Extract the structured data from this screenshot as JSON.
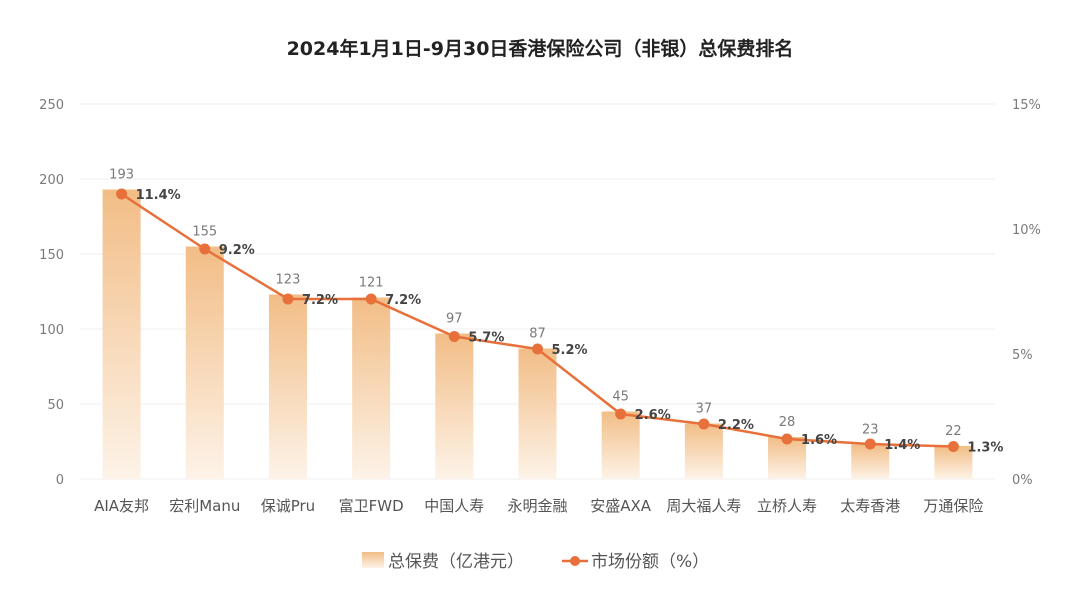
{
  "chart_data": {
    "type": "bar",
    "title": "2024年1月1日-9月30日香港保险公司（非银）总保费排名",
    "categories": [
      "AIA友邦",
      "宏利Manu",
      "保诚Pru",
      "富卫FWD",
      "中国人寿",
      "永明金融",
      "安盛AXA",
      "周大福人寿",
      "立桥人寿",
      "太寿香港",
      "万通保险"
    ],
    "series": [
      {
        "name": "总保费（亿港元）",
        "type": "bar",
        "axis": "left",
        "values": [
          193,
          155,
          123,
          121,
          97,
          87,
          45,
          37,
          28,
          23,
          22
        ]
      },
      {
        "name": "市场份额（%）",
        "type": "line",
        "axis": "right",
        "values": [
          11.4,
          9.2,
          7.2,
          7.2,
          5.7,
          5.2,
          2.6,
          2.2,
          1.6,
          1.4,
          1.3
        ],
        "labels": [
          "11.4%",
          "9.2%",
          "7.2%",
          "7.2%",
          "5.7%",
          "5.2%",
          "2.6%",
          "2.2%",
          "1.6%",
          "1.4%",
          "1.3%"
        ]
      }
    ],
    "left_axis": {
      "ylim": [
        0,
        250
      ],
      "ticks": [
        0,
        50,
        100,
        150,
        200,
        250
      ],
      "tick_labels": [
        "0",
        "50",
        "100",
        "150",
        "200",
        "250"
      ]
    },
    "right_axis": {
      "ylim": [
        0,
        15
      ],
      "ticks": [
        0,
        5,
        10,
        15
      ],
      "tick_labels": [
        "0%",
        "5%",
        "10%",
        "15%"
      ]
    },
    "grid": true,
    "legend_position": "bottom-center",
    "colors": {
      "bar_top": "#f2bd86",
      "bar_bottom": "#fdf3e8",
      "line": "#e8703a",
      "grid": "#efefef"
    }
  }
}
